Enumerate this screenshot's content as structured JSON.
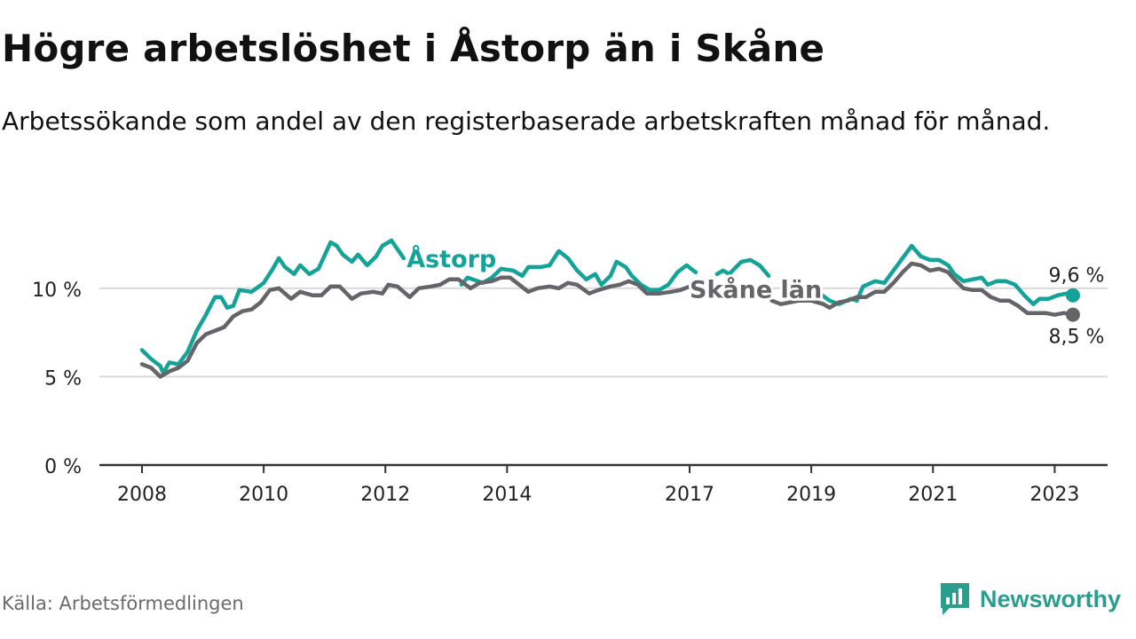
{
  "header": {
    "title": "Högre arbetslöshet i Åstorp än i Skåne",
    "subtitle": "Arbetssökande som andel av den registerbaserade arbetskraften månad för månad."
  },
  "footer": {
    "source": "Källa: Arbetsförmedlingen",
    "brand": "Newsworthy"
  },
  "colors": {
    "astorp": "#13a398",
    "skane": "#646469",
    "grid": "#d9d9d9",
    "axis": "#333333",
    "brand": "#2a9d8f"
  },
  "chart_data": {
    "type": "line",
    "title": "Högre arbetslöshet i Åstorp än i Skåne",
    "xlabel": "",
    "ylabel": "",
    "x_ticks": [
      {
        "value": 2008,
        "label": "2008"
      },
      {
        "value": 2010,
        "label": "2010"
      },
      {
        "value": 2012,
        "label": "2012"
      },
      {
        "value": 2014,
        "label": "2014"
      },
      {
        "value": 2017,
        "label": "2017"
      },
      {
        "value": 2019,
        "label": "2019"
      },
      {
        "value": 2021,
        "label": "2021"
      },
      {
        "value": 2023,
        "label": "2023"
      }
    ],
    "y_ticks": [
      {
        "value": 0,
        "label": "0 %"
      },
      {
        "value": 5,
        "label": "5 %"
      },
      {
        "value": 10,
        "label": "10 %"
      }
    ],
    "xlim": [
      2007.3,
      2023.87
    ],
    "ylim": [
      0,
      13
    ],
    "grid": true,
    "series": [
      {
        "name": "Åstorp",
        "color_key": "astorp",
        "label": "Åstorp",
        "end_label": "9,6 %",
        "points": [
          [
            2008.0,
            6.5
          ],
          [
            2008.15,
            6.0
          ],
          [
            2008.3,
            5.6
          ],
          [
            2008.35,
            5.2
          ],
          [
            2008.45,
            5.8
          ],
          [
            2008.6,
            5.7
          ],
          [
            2008.75,
            6.4
          ],
          [
            2008.9,
            7.6
          ],
          [
            2009.05,
            8.5
          ],
          [
            2009.2,
            9.5
          ],
          [
            2009.3,
            9.5
          ],
          [
            2009.4,
            8.9
          ],
          [
            2009.5,
            9.0
          ],
          [
            2009.6,
            9.9
          ],
          [
            2009.8,
            9.8
          ],
          [
            2010.0,
            10.3
          ],
          [
            2010.15,
            11.1
          ],
          [
            2010.25,
            11.7
          ],
          [
            2010.35,
            11.2
          ],
          [
            2010.5,
            10.8
          ],
          [
            2010.6,
            11.3
          ],
          [
            2010.75,
            10.8
          ],
          [
            2010.9,
            11.1
          ],
          [
            2011.1,
            12.6
          ],
          [
            2011.2,
            12.4
          ],
          [
            2011.3,
            11.9
          ],
          [
            2011.45,
            11.5
          ],
          [
            2011.55,
            11.9
          ],
          [
            2011.7,
            11.3
          ],
          [
            2011.85,
            11.8
          ],
          [
            2011.95,
            12.4
          ],
          [
            2012.1,
            12.7
          ],
          [
            2012.2,
            12.2
          ],
          [
            2012.3,
            11.7
          ],
          {
            "gap": true
          },
          [
            2013.25,
            10.2
          ],
          [
            2013.35,
            10.6
          ],
          [
            2013.6,
            10.3
          ],
          [
            2013.75,
            10.6
          ],
          [
            2013.9,
            11.1
          ],
          [
            2014.1,
            11.0
          ],
          [
            2014.25,
            10.7
          ],
          [
            2014.35,
            11.2
          ],
          [
            2014.55,
            11.2
          ],
          [
            2014.7,
            11.3
          ],
          [
            2014.85,
            12.1
          ],
          [
            2015.0,
            11.7
          ],
          [
            2015.15,
            11.0
          ],
          [
            2015.3,
            10.5
          ],
          [
            2015.45,
            10.8
          ],
          [
            2015.55,
            10.2
          ],
          [
            2015.7,
            10.7
          ],
          [
            2015.8,
            11.5
          ],
          [
            2015.95,
            11.2
          ],
          [
            2016.05,
            10.7
          ],
          [
            2016.2,
            10.2
          ],
          [
            2016.35,
            9.9
          ],
          [
            2016.5,
            9.9
          ],
          [
            2016.65,
            10.2
          ],
          [
            2016.8,
            10.9
          ],
          [
            2016.95,
            11.3
          ],
          [
            2017.1,
            10.9
          ],
          {
            "gap": true
          },
          [
            2017.45,
            10.8
          ],
          [
            2017.55,
            11.0
          ],
          [
            2017.65,
            10.8
          ],
          [
            2017.85,
            11.5
          ],
          [
            2018.0,
            11.6
          ],
          [
            2018.15,
            11.3
          ],
          [
            2018.3,
            10.7
          ],
          {
            "gap": true
          },
          [
            2019.1,
            9.8
          ],
          [
            2019.3,
            9.3
          ],
          [
            2019.45,
            9.1
          ],
          [
            2019.65,
            9.4
          ],
          [
            2019.75,
            9.3
          ],
          [
            2019.85,
            10.1
          ],
          [
            2020.05,
            10.4
          ],
          [
            2020.2,
            10.3
          ],
          [
            2020.35,
            11.0
          ],
          [
            2020.5,
            11.7
          ],
          [
            2020.65,
            12.4
          ],
          [
            2020.8,
            11.8
          ],
          [
            2020.95,
            11.6
          ],
          [
            2021.1,
            11.6
          ],
          [
            2021.25,
            11.3
          ],
          [
            2021.35,
            10.8
          ],
          [
            2021.5,
            10.4
          ],
          [
            2021.65,
            10.5
          ],
          [
            2021.8,
            10.6
          ],
          [
            2021.9,
            10.2
          ],
          [
            2022.05,
            10.4
          ],
          [
            2022.2,
            10.4
          ],
          [
            2022.35,
            10.2
          ],
          [
            2022.5,
            9.6
          ],
          [
            2022.65,
            9.1
          ],
          [
            2022.75,
            9.4
          ],
          [
            2022.9,
            9.4
          ],
          [
            2023.05,
            9.6
          ],
          [
            2023.2,
            9.7
          ],
          [
            2023.3,
            9.6
          ]
        ]
      },
      {
        "name": "Skåne län",
        "color_key": "skane",
        "label": "Skåne län",
        "end_label": "8,5 %",
        "points": [
          [
            2008.0,
            5.7
          ],
          [
            2008.15,
            5.5
          ],
          [
            2008.3,
            5.0
          ],
          [
            2008.45,
            5.3
          ],
          [
            2008.6,
            5.5
          ],
          [
            2008.75,
            5.9
          ],
          [
            2008.9,
            6.9
          ],
          [
            2009.05,
            7.4
          ],
          [
            2009.2,
            7.6
          ],
          [
            2009.35,
            7.8
          ],
          [
            2009.5,
            8.4
          ],
          [
            2009.65,
            8.7
          ],
          [
            2009.8,
            8.8
          ],
          [
            2009.95,
            9.2
          ],
          [
            2010.1,
            9.9
          ],
          [
            2010.25,
            10.0
          ],
          [
            2010.45,
            9.4
          ],
          [
            2010.6,
            9.8
          ],
          [
            2010.8,
            9.6
          ],
          [
            2010.95,
            9.6
          ],
          [
            2011.1,
            10.1
          ],
          [
            2011.25,
            10.1
          ],
          [
            2011.45,
            9.4
          ],
          [
            2011.6,
            9.7
          ],
          [
            2011.8,
            9.8
          ],
          [
            2011.95,
            9.7
          ],
          [
            2012.05,
            10.2
          ],
          [
            2012.2,
            10.1
          ],
          [
            2012.4,
            9.5
          ],
          [
            2012.55,
            10.0
          ],
          [
            2012.75,
            10.1
          ],
          [
            2012.9,
            10.2
          ],
          [
            2013.05,
            10.5
          ],
          [
            2013.2,
            10.5
          ],
          [
            2013.4,
            10.0
          ],
          [
            2013.55,
            10.3
          ],
          [
            2013.75,
            10.4
          ],
          [
            2013.9,
            10.6
          ],
          [
            2014.05,
            10.6
          ],
          [
            2014.2,
            10.2
          ],
          [
            2014.35,
            9.8
          ],
          [
            2014.5,
            10.0
          ],
          [
            2014.7,
            10.1
          ],
          [
            2014.85,
            10.0
          ],
          [
            2015.0,
            10.3
          ],
          [
            2015.15,
            10.2
          ],
          [
            2015.35,
            9.7
          ],
          [
            2015.5,
            9.9
          ],
          [
            2015.7,
            10.1
          ],
          [
            2015.85,
            10.2
          ],
          [
            2016.0,
            10.4
          ],
          [
            2016.15,
            10.2
          ],
          [
            2016.3,
            9.7
          ],
          [
            2016.5,
            9.7
          ],
          [
            2016.7,
            9.8
          ],
          [
            2016.85,
            9.9
          ],
          [
            2017.0,
            10.1
          ],
          {
            "gap": true
          },
          [
            2018.35,
            9.3
          ],
          [
            2018.5,
            9.1
          ],
          [
            2018.65,
            9.2
          ],
          [
            2018.8,
            9.3
          ],
          [
            2019.0,
            9.3
          ],
          [
            2019.2,
            9.1
          ],
          [
            2019.3,
            8.9
          ],
          [
            2019.45,
            9.2
          ],
          [
            2019.6,
            9.3
          ],
          [
            2019.75,
            9.5
          ],
          [
            2019.9,
            9.5
          ],
          [
            2020.05,
            9.8
          ],
          [
            2020.2,
            9.8
          ],
          [
            2020.35,
            10.3
          ],
          [
            2020.5,
            10.9
          ],
          [
            2020.65,
            11.4
          ],
          [
            2020.8,
            11.3
          ],
          [
            2020.95,
            11.0
          ],
          [
            2021.1,
            11.1
          ],
          [
            2021.25,
            10.9
          ],
          [
            2021.35,
            10.5
          ],
          [
            2021.5,
            10.0
          ],
          [
            2021.65,
            9.9
          ],
          [
            2021.8,
            9.9
          ],
          [
            2021.95,
            9.5
          ],
          [
            2022.1,
            9.3
          ],
          [
            2022.25,
            9.3
          ],
          [
            2022.4,
            9.0
          ],
          [
            2022.55,
            8.6
          ],
          [
            2022.7,
            8.6
          ],
          [
            2022.85,
            8.6
          ],
          [
            2023.0,
            8.5
          ],
          [
            2023.15,
            8.6
          ],
          [
            2023.3,
            8.5
          ]
        ]
      }
    ]
  }
}
